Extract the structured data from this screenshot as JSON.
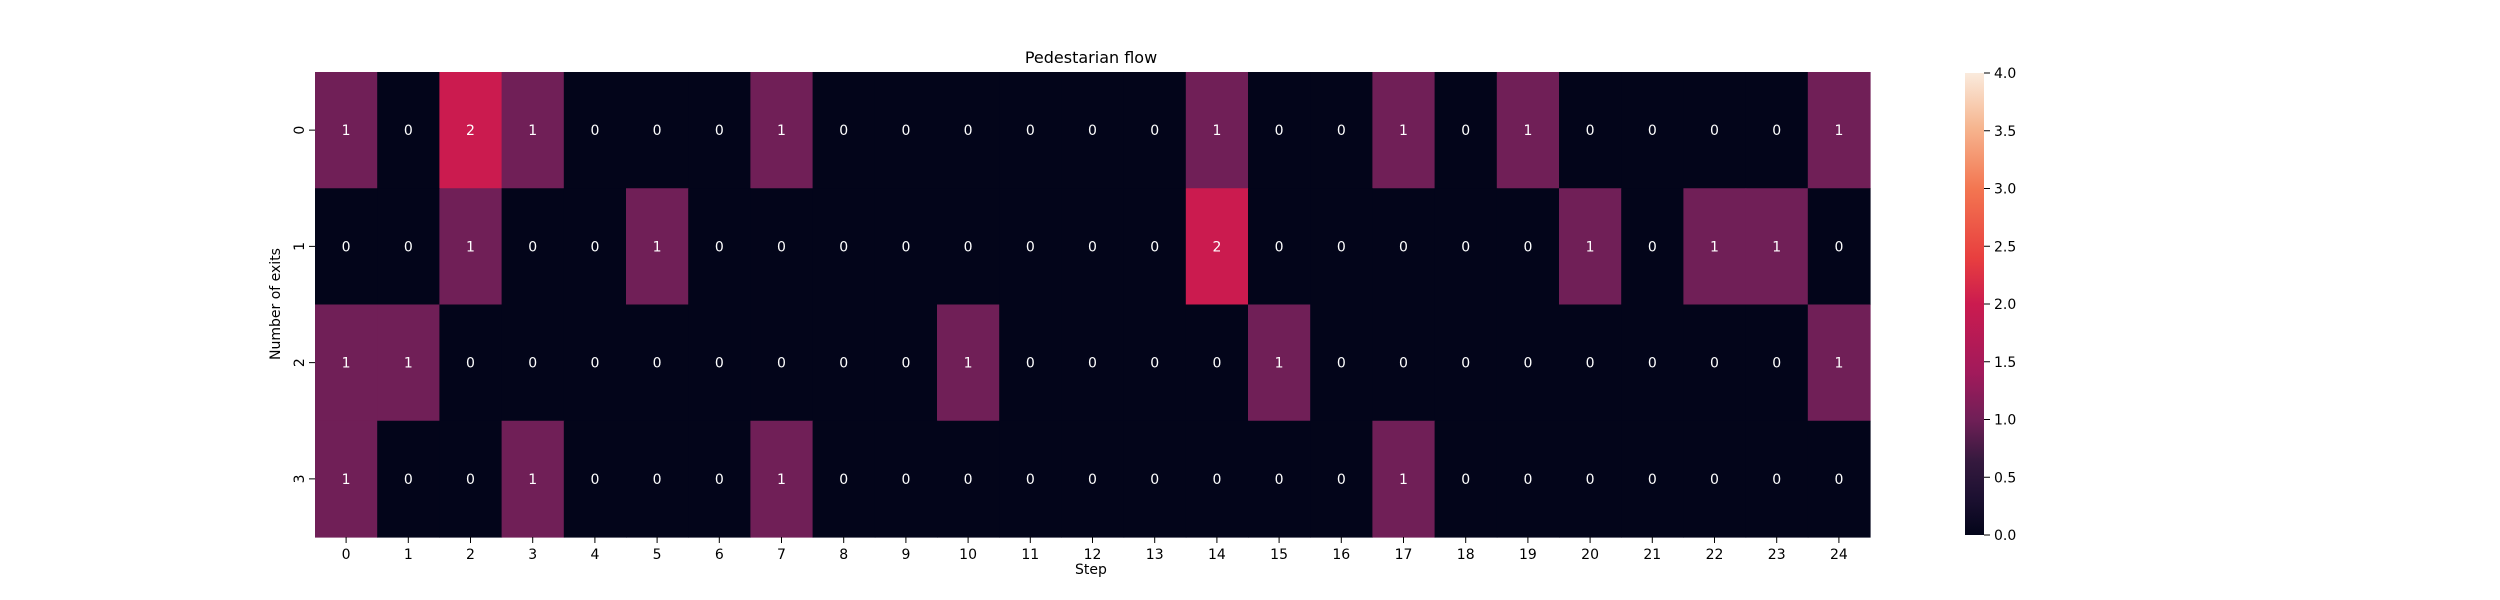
{
  "chart_data": {
    "type": "heatmap",
    "title": "Pedestarian flow",
    "xlabel": "Step",
    "ylabel": "Number of exits",
    "x": [
      "0",
      "1",
      "2",
      "3",
      "4",
      "5",
      "6",
      "7",
      "8",
      "9",
      "10",
      "11",
      "12",
      "13",
      "14",
      "15",
      "16",
      "17",
      "18",
      "19",
      "20",
      "21",
      "22",
      "23",
      "24"
    ],
    "y": [
      "0",
      "1",
      "2",
      "3"
    ],
    "values": [
      [
        1,
        0,
        2,
        1,
        0,
        0,
        0,
        1,
        0,
        0,
        0,
        0,
        0,
        0,
        1,
        0,
        0,
        1,
        0,
        1,
        0,
        0,
        0,
        0,
        1
      ],
      [
        0,
        0,
        1,
        0,
        0,
        1,
        0,
        0,
        0,
        0,
        0,
        0,
        0,
        0,
        2,
        0,
        0,
        0,
        0,
        0,
        1,
        0,
        1,
        1,
        0
      ],
      [
        1,
        1,
        0,
        0,
        0,
        0,
        0,
        0,
        0,
        0,
        1,
        0,
        0,
        0,
        0,
        1,
        0,
        0,
        0,
        0,
        0,
        0,
        0,
        0,
        1
      ],
      [
        1,
        0,
        0,
        1,
        0,
        0,
        0,
        1,
        0,
        0,
        0,
        0,
        0,
        0,
        0,
        0,
        0,
        1,
        0,
        0,
        0,
        0,
        0,
        0,
        0
      ]
    ],
    "colorbar": {
      "range": [
        0,
        4
      ],
      "ticks": [
        "0.0",
        "0.5",
        "1.0",
        "1.5",
        "2.0",
        "2.5",
        "3.0",
        "3.5",
        "4.0"
      ],
      "colormap": "rocket",
      "colors": {
        "0": "#03051a",
        "1": "#701f57",
        "2": "#cb1b4f",
        "3": "#f37651",
        "4": "#faebdd"
      }
    },
    "annotations": true,
    "annotation_color": "#ffffff",
    "grid": false
  }
}
